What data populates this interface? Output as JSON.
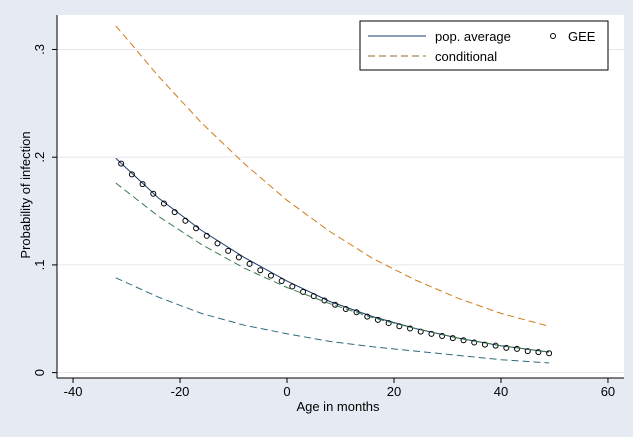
{
  "chart_data": {
    "type": "line",
    "title": "",
    "xlabel": "Age in months",
    "ylabel": "Probability of infection",
    "xlim": [
      -43,
      63
    ],
    "ylim": [
      -0.005,
      0.332
    ],
    "xticks": [
      -40,
      -20,
      0,
      20,
      40,
      60
    ],
    "yticks": [
      0,
      0.1,
      0.2,
      0.3
    ],
    "ytick_labels": [
      "0",
      ".1",
      ".2",
      ".3"
    ],
    "grid": "horizontal",
    "legend": {
      "placement": "top-right",
      "entries": [
        {
          "label": "pop. average",
          "key": "line-solid"
        },
        {
          "label": "GEE",
          "key": "marker-circle"
        },
        {
          "label": "conditional",
          "key": "line-dashed"
        }
      ]
    },
    "series": [
      {
        "name": "pop. average",
        "style": "solid",
        "color": "#1a3a6c",
        "x": [
          -32,
          -24,
          -16,
          -8,
          0,
          8,
          16,
          24,
          32,
          40,
          49
        ],
        "y": [
          0.199,
          0.162,
          0.132,
          0.107,
          0.085,
          0.066,
          0.052,
          0.041,
          0.032,
          0.025,
          0.019
        ]
      },
      {
        "name": "GEE",
        "style": "markers",
        "color": "#000000",
        "x": [
          -31,
          -29,
          -27,
          -25,
          -23,
          -21,
          -19,
          -17,
          -15,
          -13,
          -11,
          -9,
          -7,
          -5,
          -3,
          -1,
          1,
          3,
          5,
          7,
          9,
          11,
          13,
          15,
          17,
          19,
          21,
          23,
          25,
          27,
          29,
          31,
          33,
          35,
          37,
          39,
          41,
          43,
          45,
          47,
          49
        ],
        "y": [
          0.194,
          0.184,
          0.175,
          0.166,
          0.157,
          0.149,
          0.141,
          0.134,
          0.127,
          0.12,
          0.113,
          0.107,
          0.101,
          0.095,
          0.09,
          0.085,
          0.08,
          0.075,
          0.071,
          0.067,
          0.063,
          0.059,
          0.056,
          0.052,
          0.049,
          0.046,
          0.043,
          0.041,
          0.038,
          0.036,
          0.034,
          0.032,
          0.03,
          0.028,
          0.026,
          0.025,
          0.023,
          0.022,
          0.02,
          0.019,
          0.018
        ]
      },
      {
        "name": "conditional",
        "style": "dashed",
        "color": "#d07a18",
        "x": [
          -32,
          -24,
          -16,
          -8,
          0,
          8,
          16,
          24,
          32,
          40,
          49
        ],
        "y": [
          0.322,
          0.275,
          0.232,
          0.194,
          0.16,
          0.131,
          0.106,
          0.086,
          0.069,
          0.055,
          0.043
        ]
      },
      {
        "name": "conditional",
        "style": "dashed",
        "color": "#3a7a4a",
        "x": [
          -32,
          -24,
          -16,
          -8,
          0,
          8,
          16,
          24,
          32,
          40,
          49
        ],
        "y": [
          0.176,
          0.145,
          0.119,
          0.097,
          0.079,
          0.064,
          0.051,
          0.041,
          0.032,
          0.025,
          0.019
        ]
      },
      {
        "name": "conditional",
        "style": "dashed",
        "color": "#2e6a7c",
        "x": [
          -32,
          -24,
          -16,
          -8,
          0,
          8,
          16,
          24,
          32,
          40,
          49
        ],
        "y": [
          0.088,
          0.07,
          0.055,
          0.044,
          0.036,
          0.029,
          0.024,
          0.02,
          0.016,
          0.012,
          0.009
        ]
      }
    ]
  }
}
